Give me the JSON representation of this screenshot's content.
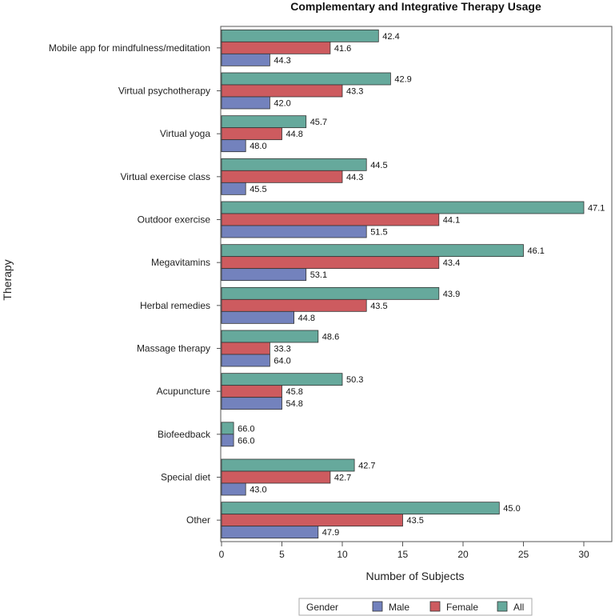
{
  "chart_data": {
    "type": "bar",
    "orientation": "horizontal",
    "title": "Complementary and Integrative Therapy Usage",
    "xlabel": "Number of Subjects",
    "ylabel": "Therapy",
    "xlim": [
      0,
      32.5
    ],
    "xticks": [
      0,
      5,
      10,
      15,
      20,
      25,
      30
    ],
    "categories": [
      "Mobile app for mindfulness/meditation",
      "Virtual psychotherapy",
      "Virtual yoga",
      "Virtual exercise class",
      "Outdoor exercise",
      "Megavitamins",
      "Herbal remedies",
      "Massage therapy",
      "Acupuncture",
      "Biofeedback",
      "Special diet",
      "Other"
    ],
    "series": [
      {
        "name": "All",
        "color": "#66a99c",
        "values": [
          13,
          14,
          7,
          12,
          30,
          25,
          18,
          8,
          10,
          1,
          11,
          23
        ],
        "labels": [
          "42.4",
          "42.9",
          "45.7",
          "44.5",
          "47.1",
          "46.1",
          "43.9",
          "48.6",
          "50.3",
          "66.0",
          "42.7",
          "45.0"
        ]
      },
      {
        "name": "Female",
        "color": "#cd5b5f",
        "values": [
          9,
          10,
          5,
          10,
          18,
          18,
          12,
          4,
          5,
          0,
          9,
          15
        ],
        "labels": [
          "41.6",
          "43.3",
          "44.8",
          "44.3",
          "44.1",
          "43.4",
          "43.5",
          "33.3",
          "45.8",
          "",
          "42.7",
          "43.5"
        ]
      },
      {
        "name": "Male",
        "color": "#7382bd",
        "values": [
          4,
          4,
          2,
          2,
          12,
          7,
          6,
          4,
          5,
          1,
          2,
          8
        ],
        "labels": [
          "44.3",
          "42.0",
          "48.0",
          "45.5",
          "51.5",
          "53.1",
          "44.8",
          "64.0",
          "54.8",
          "66.0",
          "43.0",
          "47.9"
        ]
      }
    ],
    "legend": {
      "title": "Gender",
      "position": "bottom",
      "entries": [
        "Male",
        "Female",
        "All"
      ]
    }
  }
}
